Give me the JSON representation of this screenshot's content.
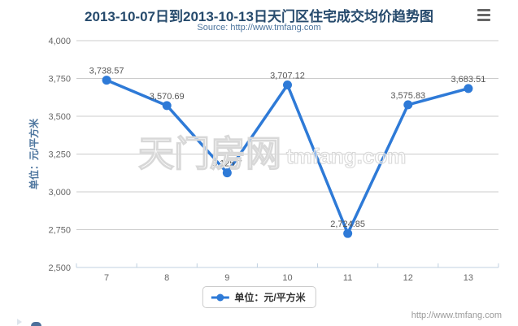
{
  "header": {
    "title": "2013-10-07日到2013-10-13日天门区住宅成交均价趋势图",
    "subtitle": "Source: http://www.tmfang.com"
  },
  "chart_data": {
    "type": "line",
    "title": "2013-10-07日到2013-10-13日天门区住宅成交均价趋势图",
    "subtitle": "Source: http://www.tmfang.com",
    "categories": [
      "7",
      "8",
      "9",
      "10",
      "11",
      "12",
      "13"
    ],
    "values": [
      3738.57,
      3570.69,
      3125.7,
      3707.12,
      2724.85,
      3575.83,
      3683.51
    ],
    "point_labels": [
      "3,738.57",
      "3,570.69",
      "3,125.7",
      "3,707.12",
      "2,724.85",
      "3,575.83",
      "3,683.51"
    ],
    "series_name": "单位：元/平方米",
    "xlabel": "",
    "ylabel": "单位：元/平方米",
    "ylim": [
      2500,
      4000
    ],
    "y_ticks": [
      2500,
      2750,
      3000,
      3250,
      3500,
      3750,
      4000
    ],
    "y_tick_labels": [
      "2,500",
      "2,750",
      "3,000",
      "3,250",
      "3,500",
      "3,750",
      "4,000"
    ],
    "grid": true,
    "legend_position": "bottom",
    "colors": {
      "line": "#2e7ad7",
      "grid": "#cccccc",
      "axis_line": "#c0d0e0",
      "tick": "#c0d0e0",
      "axis_label": "#666666",
      "axis_title": "#4d759e",
      "data_label": "#565656",
      "title": "#274b6d",
      "subtitle": "#4d759e",
      "watermark": "#d8d8d8"
    }
  },
  "legend": {
    "label": "单位：元/平方米"
  },
  "watermark": {
    "cn": "天门房网",
    "en": "tmfang.com"
  },
  "footer": {
    "url": "http://www.tmfang.com"
  }
}
